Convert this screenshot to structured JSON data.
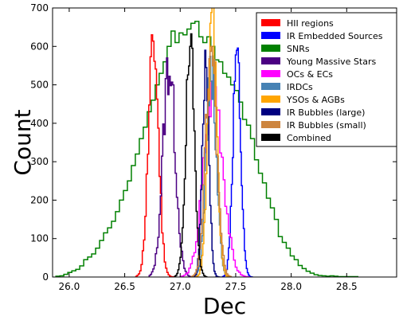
{
  "chart_data": {
    "type": "histogram",
    "title": "",
    "xlabel": "Dec",
    "ylabel": "Count",
    "xlim": [
      25.85,
      28.95
    ],
    "ylim": [
      0,
      700
    ],
    "xticks": [
      26.0,
      26.5,
      27.0,
      27.5,
      28.0,
      28.5
    ],
    "xtick_labels": [
      "26.0",
      "26.5",
      "27.0",
      "27.5",
      "28.0",
      "28.5"
    ],
    "yticks": [
      0,
      100,
      200,
      300,
      400,
      500,
      600,
      700
    ],
    "ytick_labels": [
      "0",
      "100",
      "200",
      "300",
      "400",
      "500",
      "600",
      "700"
    ],
    "grid": false,
    "legend_position": "top-right",
    "series": [
      {
        "name": "HII regions",
        "color": "#ff0000",
        "style": "peak",
        "center": 26.76,
        "peak": 630,
        "sigma": 0.045,
        "steps": 30,
        "x_min": 26.6,
        "x_max": 26.95,
        "seed": 11
      },
      {
        "name": "IR Embedded Sources",
        "color": "#0000ff",
        "style": "peak",
        "center": 27.51,
        "peak": 590,
        "sigma": 0.035,
        "steps": 30,
        "x_min": 27.38,
        "x_max": 27.65,
        "seed": 12
      },
      {
        "name": "SNRs",
        "color": "#008000",
        "style": "broad",
        "x_start": 25.88,
        "x_end": 28.6,
        "values": [
          2,
          3,
          7,
          12,
          16,
          20,
          29,
          45,
          52,
          60,
          75,
          95,
          115,
          128,
          145,
          170,
          200,
          225,
          250,
          290,
          320,
          360,
          390,
          430,
          460,
          500,
          530,
          560,
          600,
          640,
          610,
          635,
          630,
          645,
          660,
          665,
          625,
          610,
          625,
          600,
          565,
          560,
          530,
          520,
          500,
          485,
          455,
          410,
          395,
          360,
          305,
          270,
          245,
          205,
          180,
          150,
          105,
          90,
          75,
          55,
          45,
          30,
          22,
          15,
          10,
          6,
          4,
          3,
          2,
          3,
          2,
          1,
          1,
          1,
          1,
          1
        ]
      },
      {
        "name": "Young Massive Stars",
        "color": "#4b0082",
        "style": "peak",
        "center": 26.9,
        "peak": 570,
        "sigma": 0.055,
        "steps": 34,
        "x_min": 26.72,
        "x_max": 27.1,
        "seed": 13
      },
      {
        "name": "OCs & ECs",
        "color": "#ff00ff",
        "style": "peak",
        "center": 27.3,
        "peak": 510,
        "sigma": 0.085,
        "steps": 40,
        "x_min": 27.0,
        "x_max": 27.62,
        "seed": 14
      },
      {
        "name": "IRDCs",
        "color": "#4682b4",
        "style": "peak",
        "center": 27.28,
        "peak": 575,
        "sigma": 0.045,
        "steps": 34,
        "x_min": 27.12,
        "x_max": 27.45,
        "seed": 15
      },
      {
        "name": "YSOs & AGBs",
        "color": "#ffa500",
        "style": "peak",
        "center": 27.29,
        "peak": 688,
        "sigma": 0.04,
        "steps": 34,
        "x_min": 27.14,
        "x_max": 27.45,
        "seed": 16
      },
      {
        "name": "IR Bubbles (large)",
        "color": "#000080",
        "style": "peak",
        "center": 27.23,
        "peak": 590,
        "sigma": 0.03,
        "steps": 26,
        "x_min": 27.12,
        "x_max": 27.36,
        "seed": 17
      },
      {
        "name": "IR Bubbles (small)",
        "color": "#cd853f",
        "style": "peak",
        "center": 27.28,
        "peak": 600,
        "sigma": 0.05,
        "steps": 34,
        "x_min": 27.1,
        "x_max": 27.46,
        "seed": 18
      },
      {
        "name": "Combined",
        "color": "#000000",
        "style": "peak",
        "center": 27.09,
        "peak": 600,
        "sigma": 0.04,
        "steps": 30,
        "x_min": 26.95,
        "x_max": 27.24,
        "seed": 19
      }
    ]
  }
}
